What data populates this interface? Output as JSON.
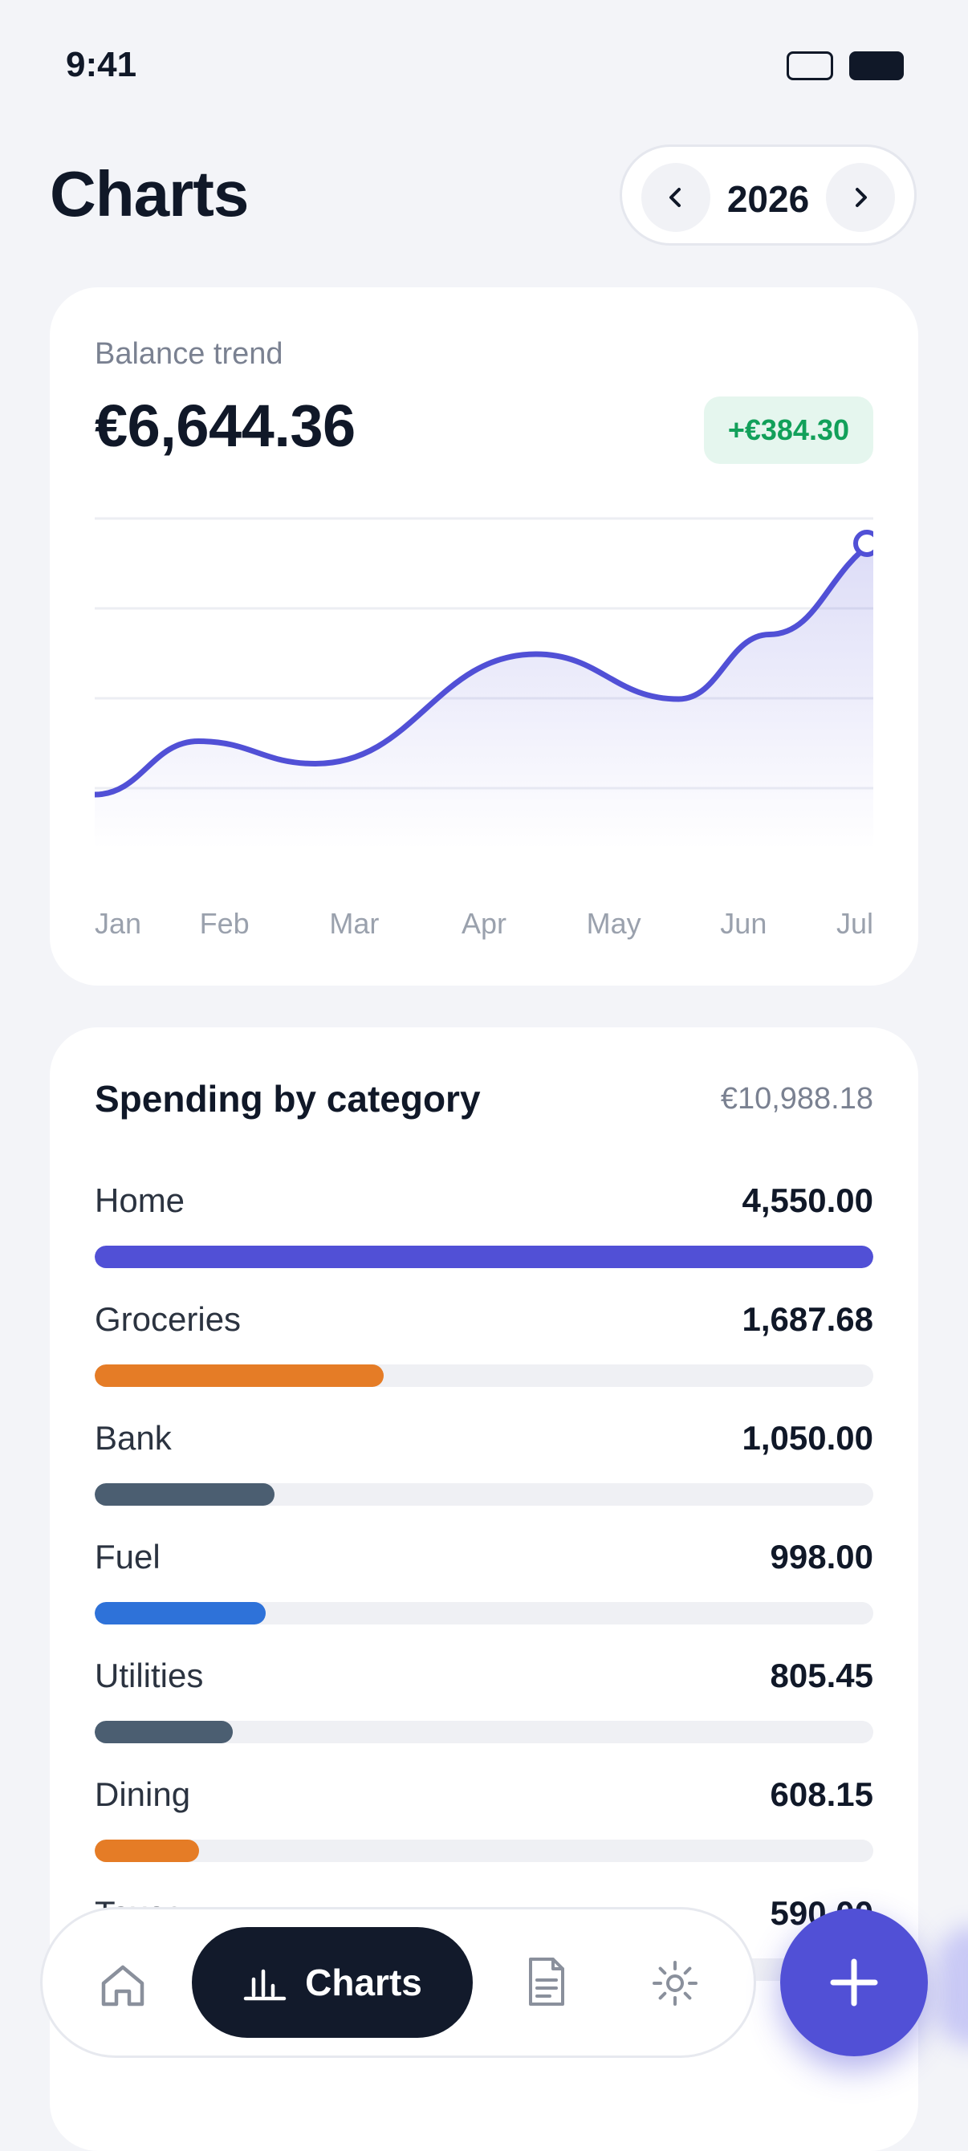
{
  "status_bar": {
    "time": "9:41"
  },
  "header": {
    "title": "Charts",
    "year": "2026"
  },
  "balance": {
    "label": "Balance trend",
    "amount": "€6,644.36",
    "delta": "+€384.30"
  },
  "chart_data": {
    "type": "area",
    "categories": [
      "Jan",
      "Feb",
      "Mar",
      "Apr",
      "May",
      "Jun",
      "Jul"
    ],
    "x": [
      0,
      0.8,
      1.7,
      3.4,
      4.5,
      5.2,
      6.0
    ],
    "values": [
      0.08,
      0.27,
      0.19,
      0.58,
      0.42,
      0.65,
      0.98
    ],
    "accent": "#5150d6",
    "grid": true,
    "title": "",
    "xlabel": "",
    "ylabel": ""
  },
  "spending": {
    "title": "Spending by category",
    "total": "€10,988.18",
    "max": 4550,
    "categories": [
      {
        "name": "Home",
        "value": "4,550.00",
        "amount": 4550,
        "color": "#5150d6"
      },
      {
        "name": "Groceries",
        "value": "1,687.68",
        "amount": 1687.68,
        "color": "#e57c26"
      },
      {
        "name": "Bank",
        "value": "1,050.00",
        "amount": 1050,
        "color": "#4b5e71"
      },
      {
        "name": "Fuel",
        "value": "998.00",
        "amount": 998,
        "color": "#2e72d9"
      },
      {
        "name": "Utilities",
        "value": "805.45",
        "amount": 805.45,
        "color": "#4b5e71"
      },
      {
        "name": "Dining",
        "value": "608.15",
        "amount": 608.15,
        "color": "#e57c26"
      },
      {
        "name": "Taxes",
        "value": "590.00",
        "amount": 590,
        "color": "#e6e8ee"
      }
    ]
  },
  "nav": {
    "active_label": "Charts",
    "icons": [
      "home-icon",
      "bar-chart-icon",
      "document-icon",
      "gear-icon",
      "plus-icon"
    ]
  }
}
